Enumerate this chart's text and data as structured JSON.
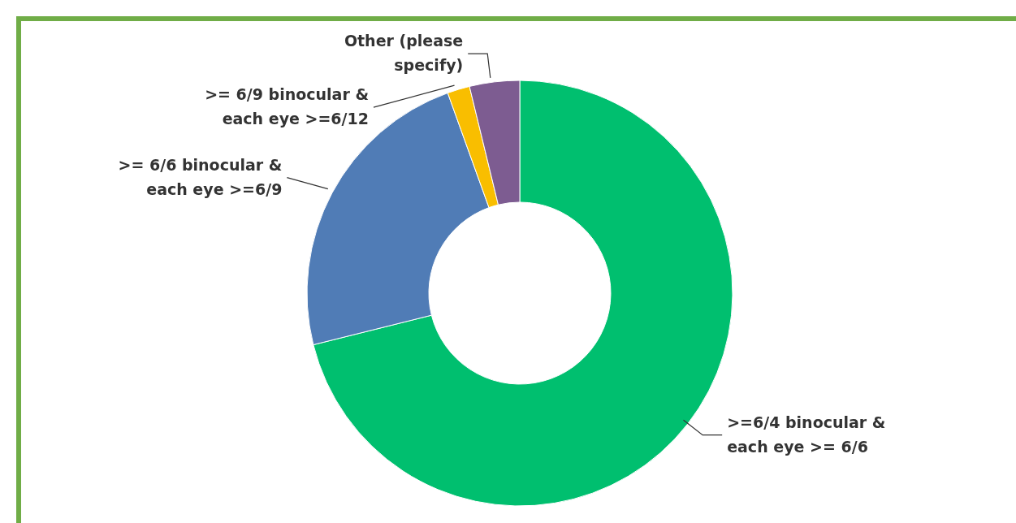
{
  "chart_data": {
    "type": "donut",
    "categories": [
      ">=6/4 binocular & each eye >= 6/6",
      ">= 6/6 binocular & each eye >=6/9",
      ">= 6/9 binocular & each eye >=6/12",
      "Other (please specify)"
    ],
    "values": [
      71.1,
      23.4,
      1.7,
      3.8
    ],
    "colors": [
      "#00bf6f",
      "#507cb6",
      "#f9be00",
      "#7d5c91"
    ]
  }
}
